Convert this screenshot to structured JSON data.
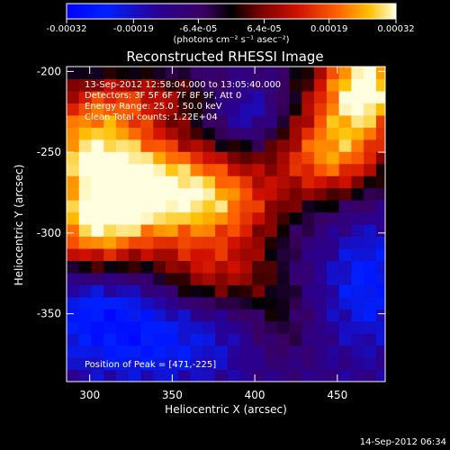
{
  "chart_data": {
    "type": "heatmap",
    "title": "Reconstructed RHESSI Image",
    "xlabel": "Heliocentric X (arcsec)",
    "ylabel": "Heliocentric Y (arcsec)",
    "xlim": [
      286,
      479
    ],
    "ylim": [
      -392,
      -197
    ],
    "x_ticks": [
      300,
      350,
      400,
      450
    ],
    "y_ticks": [
      -200,
      -250,
      -300,
      -350
    ],
    "colorbar": {
      "ticks": [
        "-0.00032",
        "-0.00019",
        "-6.4e-05",
        "6.4e-05",
        "0.00019",
        "0.00032"
      ],
      "unit_label": "(photons cm⁻² s⁻¹ asec⁻²)",
      "range": [
        -0.00032,
        0.00032
      ]
    },
    "annotations": {
      "time_range": "13-Sep-2012 12:58:04.000 to 13:05:40.000",
      "detectors": "Detectors: 3F 5F 6F 7F 8F 9F, Att 0",
      "energy": "Energy Range: 25.0 - 50.0 keV",
      "clean_counts": "Clean    Total counts: 1.22E+04",
      "peak": "Position of Peak = [471,-225]"
    },
    "footer_timestamp": "14-Sep-2012 06:34",
    "intensity_blobs": [
      {
        "x": 300,
        "y": -245,
        "sx": 28,
        "sy": 22,
        "a": 0.00032
      },
      {
        "x": 325,
        "y": -280,
        "sx": 35,
        "sy": 25,
        "a": 0.00026
      },
      {
        "x": 300,
        "y": -300,
        "sx": 22,
        "sy": 18,
        "a": 0.00024
      },
      {
        "x": 360,
        "y": -270,
        "sx": 30,
        "sy": 22,
        "a": 0.00021
      },
      {
        "x": 390,
        "y": -285,
        "sx": 25,
        "sy": 18,
        "a": 0.00016
      },
      {
        "x": 365,
        "y": -325,
        "sx": 20,
        "sy": 18,
        "a": 0.00015
      },
      {
        "x": 395,
        "y": -325,
        "sx": 18,
        "sy": 16,
        "a": 0.00012
      },
      {
        "x": 415,
        "y": -355,
        "sx": 14,
        "sy": 18,
        "a": 0.0001
      },
      {
        "x": 330,
        "y": -215,
        "sx": 35,
        "sy": 12,
        "a": 0.00017
      },
      {
        "x": 460,
        "y": -225,
        "sx": 25,
        "sy": 30,
        "a": 0.00028
      },
      {
        "x": 440,
        "y": -255,
        "sx": 22,
        "sy": 18,
        "a": 0.0002
      },
      {
        "x": 470,
        "y": -205,
        "sx": 18,
        "sy": 18,
        "a": 0.00024
      },
      {
        "x": 395,
        "y": -225,
        "sx": 15,
        "sy": 12,
        "a": -0.00012
      },
      {
        "x": 340,
        "y": -365,
        "sx": 40,
        "sy": 22,
        "a": -0.00014
      },
      {
        "x": 470,
        "y": -330,
        "sx": 20,
        "sy": 30,
        "a": -0.00014
      },
      {
        "x": 300,
        "y": -345,
        "sx": 25,
        "sy": 20,
        "a": -0.0001
      }
    ]
  }
}
